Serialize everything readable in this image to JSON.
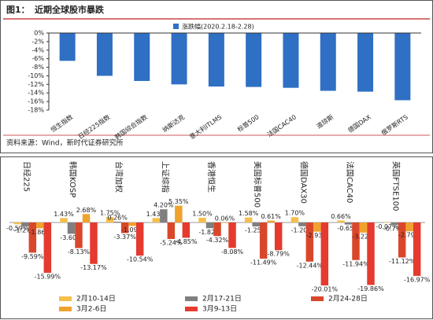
{
  "header": {
    "figure_label": "图1：",
    "title": "近期全球股市暴跌"
  },
  "chart_data": [
    {
      "type": "bar",
      "categories": [
        "恒生指数",
        "日经225指数",
        "韩国综合指数",
        "纳斯达克",
        "意大利ITLMS",
        "标普500",
        "法国CAC40",
        "道琼斯",
        "德国DAX",
        "俄罗斯RTS"
      ],
      "series": [
        {
          "name": "涨跌幅(2020.2.18-2.28)",
          "color": "#2f6fc4",
          "values": [
            -6.5,
            -10.0,
            -11.2,
            -12.0,
            -12.5,
            -12.6,
            -12.8,
            -13.5,
            -13.7,
            -15.7
          ]
        }
      ],
      "ylim": [
        -18,
        0
      ],
      "yticks": [
        {
          "value": 0,
          "label": "0%"
        },
        {
          "value": -2,
          "label": "-2%"
        },
        {
          "value": -4,
          "label": "-4%"
        },
        {
          "value": -6,
          "label": "-6%"
        },
        {
          "value": -8,
          "label": "-8%"
        },
        {
          "value": -10,
          "label": "-10%"
        },
        {
          "value": -12,
          "label": "-12%"
        },
        {
          "value": -14,
          "label": "-14%"
        },
        {
          "value": -16,
          "label": "-16%"
        },
        {
          "value": -18,
          "label": "-18%"
        }
      ],
      "legend": "top"
    },
    {
      "type": "grouped-bar",
      "categories": [
        "日经225",
        "韩国KOSP",
        "台湾加权",
        "上证综指",
        "香港恒生",
        "美国标普500",
        "德国DAX30",
        "法国CAC40",
        "英国FTSE100"
      ],
      "series": [
        {
          "name": "2月10-14日",
          "color": "#f5c04a",
          "values": [
            -0.59,
            1.43,
            1.75,
            1.43,
            1.5,
            1.58,
            1.7,
            0.66,
            -0.07
          ],
          "value_labels": [
            "-0.59%",
            "1.43%",
            "1.75%",
            "1.43%",
            "1.50%",
            "1.58%",
            "1.70%",
            "0.66%",
            "-0.07%"
          ]
        },
        {
          "name": "2月17-21日",
          "color": "#7f7f7f",
          "values": [
            -1.27,
            -3.6,
            0.26,
            4.2,
            -1.82,
            -1.25,
            -1.2,
            -0.65,
            -0.77
          ],
          "value_labels": [
            "-1.27%",
            "-3.60%",
            "0.26%",
            "4.20%",
            "-1.82%",
            "-1.25%",
            "-1.20%",
            "-0.65%",
            "-0.77%"
          ]
        },
        {
          "name": "2月24-28日",
          "color": "#d9472b",
          "values": [
            -9.59,
            -8.13,
            -3.37,
            -5.24,
            -4.32,
            -11.49,
            -12.44,
            -11.94,
            -11.12
          ],
          "value_labels": [
            "-9.59%",
            "-8.13%",
            "-3.37%",
            "-5.24%",
            "-4.32%",
            "-11.49%",
            "-12.44%",
            "-11.94%",
            "-11.12%"
          ]
        },
        {
          "name": "3月2-6日",
          "color": "#f0a22e",
          "values": [
            -1.86,
            2.68,
            -1.09,
            5.35,
            0.06,
            0.61,
            -2.93,
            -3.22,
            -2.79
          ],
          "value_labels": [
            "-1.86%",
            "2.68%",
            "-1.09%",
            "5.35%",
            "0.06%",
            "0.61%",
            "-2.93%",
            "-3.22%",
            "-2.79%"
          ]
        },
        {
          "name": "3月9-13日",
          "color": "#e53a2f",
          "values": [
            -15.99,
            -13.17,
            -10.54,
            -4.85,
            -8.08,
            -8.79,
            -20.01,
            -19.86,
            -16.97
          ],
          "value_labels": [
            "-15.99%",
            "-13.17%",
            "-10.54%",
            "-4.85%",
            "-8.08%",
            "-8.79%",
            "-20.01%",
            "-19.86%",
            "-16.97%"
          ]
        }
      ],
      "ylim": [
        -21,
        7
      ],
      "legend": "bottom"
    }
  ],
  "source": "资料来源：Wind，新时代证券研究所"
}
